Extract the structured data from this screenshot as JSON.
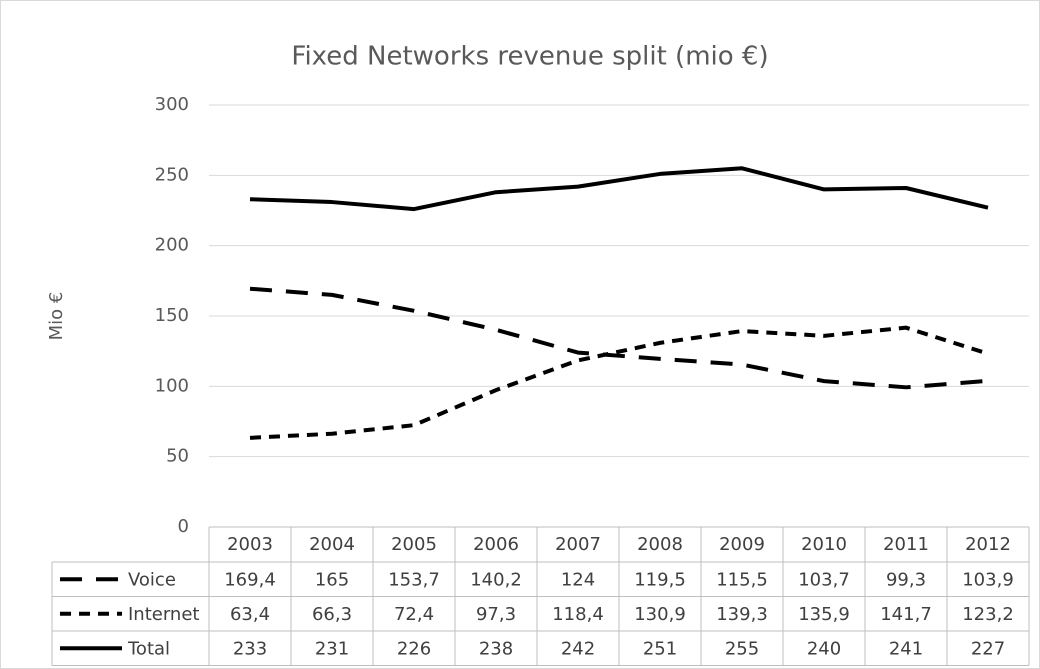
{
  "chart_data": {
    "type": "line",
    "title": "Fixed Networks revenue split (mio €)",
    "y_label": "Mio €",
    "categories": [
      "2003",
      "2004",
      "2005",
      "2006",
      "2007",
      "2008",
      "2009",
      "2010",
      "2011",
      "2012"
    ],
    "series": [
      {
        "name": "Voice",
        "color": "#000000",
        "line_style": "long-dash",
        "values": [
          169.4,
          165,
          153.7,
          140.2,
          124,
          119.5,
          115.5,
          103.7,
          99.3,
          103.9
        ],
        "value_labels": [
          "169,4",
          "165",
          "153,7",
          "140,2",
          "124",
          "119,5",
          "115,5",
          "103,7",
          "99,3",
          "103,9"
        ]
      },
      {
        "name": "Internet",
        "color": "#000000",
        "line_style": "short-dash",
        "values": [
          63.4,
          66.3,
          72.4,
          97.3,
          118.4,
          130.9,
          139.3,
          135.9,
          141.7,
          123.2
        ],
        "value_labels": [
          "63,4",
          "66,3",
          "72,4",
          "97,3",
          "118,4",
          "130,9",
          "139,3",
          "135,9",
          "141,7",
          "123,2"
        ]
      },
      {
        "name": "Total",
        "color": "#000000",
        "line_style": "solid",
        "values": [
          233,
          231,
          226,
          238,
          242,
          251,
          255,
          240,
          241,
          227
        ],
        "value_labels": [
          "233",
          "231",
          "226",
          "238",
          "242",
          "251",
          "255",
          "240",
          "241",
          "227"
        ]
      }
    ],
    "ylim": [
      0,
      300
    ],
    "yticks": [
      0,
      50,
      100,
      150,
      200,
      250,
      300
    ],
    "grid": true,
    "data_table": true
  }
}
